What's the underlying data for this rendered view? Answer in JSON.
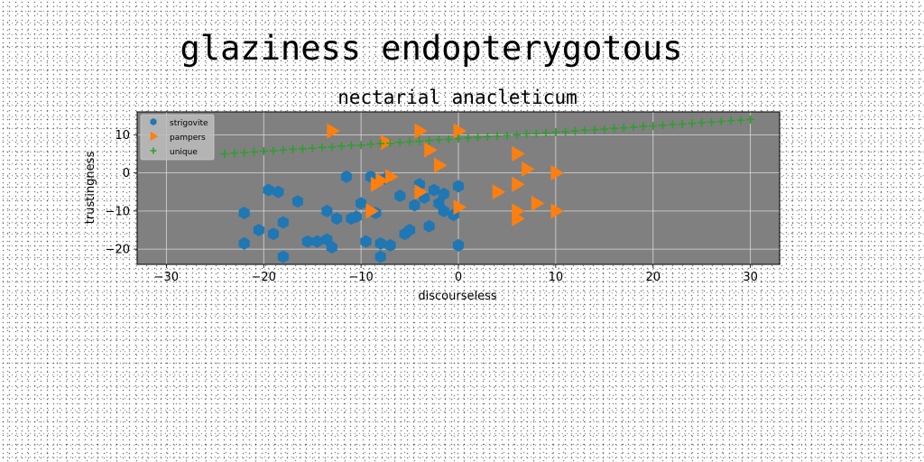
{
  "figure": {
    "suptitle": "glaziness endopterygotous"
  },
  "chart_data": {
    "type": "scatter",
    "title": "nectarial anacleticum",
    "xlabel": "discourseless",
    "ylabel": "trustingness",
    "xlim": [
      -33,
      33
    ],
    "ylim": [
      -24,
      16
    ],
    "xticks": [
      -30,
      -20,
      -10,
      0,
      10,
      20,
      30
    ],
    "yticks": [
      -20,
      -10,
      0,
      10
    ],
    "xtick_labels": [
      "−30",
      "−20",
      "−10",
      "0",
      "10",
      "20",
      "30"
    ],
    "ytick_labels": [
      "−20",
      "−10",
      "0",
      "10"
    ],
    "grid": true,
    "legend_position": "upper-left",
    "plot_background": "#808080",
    "series": [
      {
        "name": "strigovite",
        "marker": "hexagon",
        "color": "#1f77b4",
        "x": [
          -22,
          -22,
          -20.5,
          -19.5,
          -19,
          -18.5,
          -18,
          -18,
          -16.5,
          -15.5,
          -14.5,
          -13.5,
          -13.5,
          -13,
          -12.5,
          -11.5,
          -11,
          -10.5,
          -10,
          -9.5,
          -9,
          -8.5,
          -8,
          -8,
          -7.5,
          -7,
          -6,
          -5.5,
          -5,
          -4.5,
          -4,
          -3.5,
          -3,
          -2.5,
          -2,
          -1.5,
          -1.5,
          -0.5,
          0,
          0
        ],
        "y": [
          -18.5,
          -10.5,
          -15,
          -4.5,
          -16,
          -5,
          -13,
          -22,
          -7.5,
          -18,
          -18,
          -10,
          -17.5,
          -19.5,
          -12,
          -1,
          -12,
          -11.5,
          -8,
          -18,
          -1,
          -10.5,
          -18.5,
          -22,
          -1.5,
          -19,
          -6,
          -16,
          -15,
          -8.5,
          -3,
          -6.5,
          -14,
          -4.5,
          -8,
          -10,
          -5.5,
          -11,
          -3.5,
          -19
        ]
      },
      {
        "name": "pampers",
        "marker": "triangle-right",
        "color": "#ff7f0e",
        "x": [
          -13,
          -9,
          -8.5,
          -8,
          -7.5,
          -7,
          -4,
          -4,
          -3,
          -2,
          0,
          0,
          4,
          6,
          6,
          6,
          6,
          7,
          8,
          10,
          10
        ],
        "y": [
          11,
          -10,
          -3,
          -2,
          8,
          -1,
          -5,
          11,
          6,
          2,
          -9,
          11,
          -5,
          5,
          -3,
          -10,
          -12,
          1,
          -8,
          0,
          -10
        ]
      },
      {
        "name": "unique",
        "marker": "plus",
        "color": "#2ca02c",
        "x": [
          -24,
          -23,
          -22,
          -21,
          -20,
          -19,
          -18,
          -17,
          -16,
          -15,
          -14,
          -13,
          -12,
          -11,
          -10,
          -9,
          -8,
          -7,
          -6,
          -5,
          -4,
          -3,
          -2,
          -1,
          0,
          1,
          2,
          3,
          4,
          5,
          6,
          7,
          8,
          9,
          10,
          11,
          12,
          13,
          14,
          15,
          16,
          17,
          18,
          19,
          20,
          21,
          22,
          23,
          24,
          25,
          26,
          27,
          28,
          29,
          30
        ],
        "y": [
          5,
          5.2,
          5.3,
          5.5,
          5.7,
          5.8,
          6,
          6.2,
          6.3,
          6.5,
          6.7,
          6.8,
          7,
          7.2,
          7.3,
          7.5,
          7.7,
          7.8,
          8,
          8.2,
          8.3,
          8.5,
          8.7,
          8.8,
          9,
          9.2,
          9.3,
          9.5,
          9.7,
          9.8,
          10,
          10.2,
          10.3,
          10.5,
          10.7,
          10.8,
          11,
          11.2,
          11.3,
          11.5,
          11.7,
          11.8,
          12,
          12.2,
          12.3,
          12.5,
          12.7,
          12.8,
          13,
          13.2,
          13.3,
          13.5,
          13.7,
          13.8,
          14
        ]
      }
    ]
  }
}
